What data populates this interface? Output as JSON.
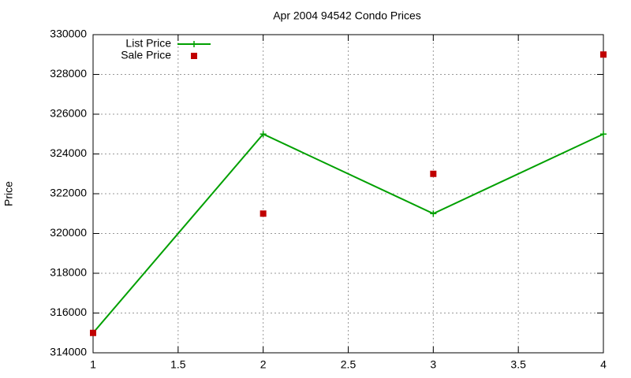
{
  "chart_data": {
    "type": "line",
    "title": "Apr 2004 94542 Condo Prices",
    "y_label": "Price",
    "x": [
      1,
      2,
      3,
      4
    ],
    "series": [
      {
        "name": "List Price",
        "color": "#00a000",
        "line": true,
        "marker": "plus",
        "values": [
          315000,
          325000,
          321000,
          325000
        ]
      },
      {
        "name": "Sale Price",
        "color": "#c00000",
        "line": false,
        "marker": "square",
        "values": [
          315000,
          321000,
          323000,
          329000
        ]
      }
    ],
    "xlim": [
      1,
      4
    ],
    "xticks": [
      1,
      1.5,
      2,
      2.5,
      3,
      3.5,
      4
    ],
    "ylim": [
      314000,
      330000
    ],
    "yticks": [
      314000,
      316000,
      318000,
      320000,
      322000,
      324000,
      326000,
      328000,
      330000
    ],
    "grid": true,
    "legend": "top-left"
  }
}
